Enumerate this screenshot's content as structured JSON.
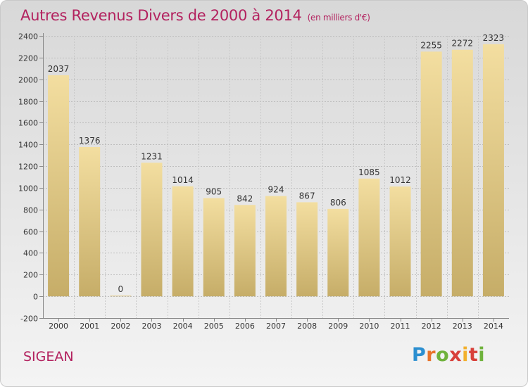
{
  "header": {
    "title": "Autres Revenus Divers de 2000 à 2014",
    "unit": "(en milliers d'€)"
  },
  "footer": {
    "commune": "SIGEAN",
    "logo_letters": [
      "P",
      "r",
      "o",
      "x",
      "i",
      "t",
      "i"
    ]
  },
  "chart_data": {
    "type": "bar",
    "title": "Autres Revenus Divers de 2000 à 2014",
    "subtitle": "(en milliers d'€)",
    "xlabel": "",
    "ylabel": "",
    "categories": [
      "2000",
      "2001",
      "2002",
      "2003",
      "2004",
      "2005",
      "2006",
      "2007",
      "2008",
      "2009",
      "2010",
      "2011",
      "2012",
      "2013",
      "2014"
    ],
    "values": [
      2037,
      1376,
      0,
      1231,
      1014,
      905,
      842,
      924,
      867,
      806,
      1085,
      1012,
      2255,
      2272,
      2323
    ],
    "ylim": [
      -200,
      2400
    ],
    "yticks": [
      -200,
      0,
      200,
      400,
      600,
      800,
      1000,
      1200,
      1400,
      1600,
      1800,
      2000,
      2200,
      2400
    ],
    "grid": true,
    "bar_colors": [
      "#f3dea0",
      "#c6ad68"
    ]
  }
}
